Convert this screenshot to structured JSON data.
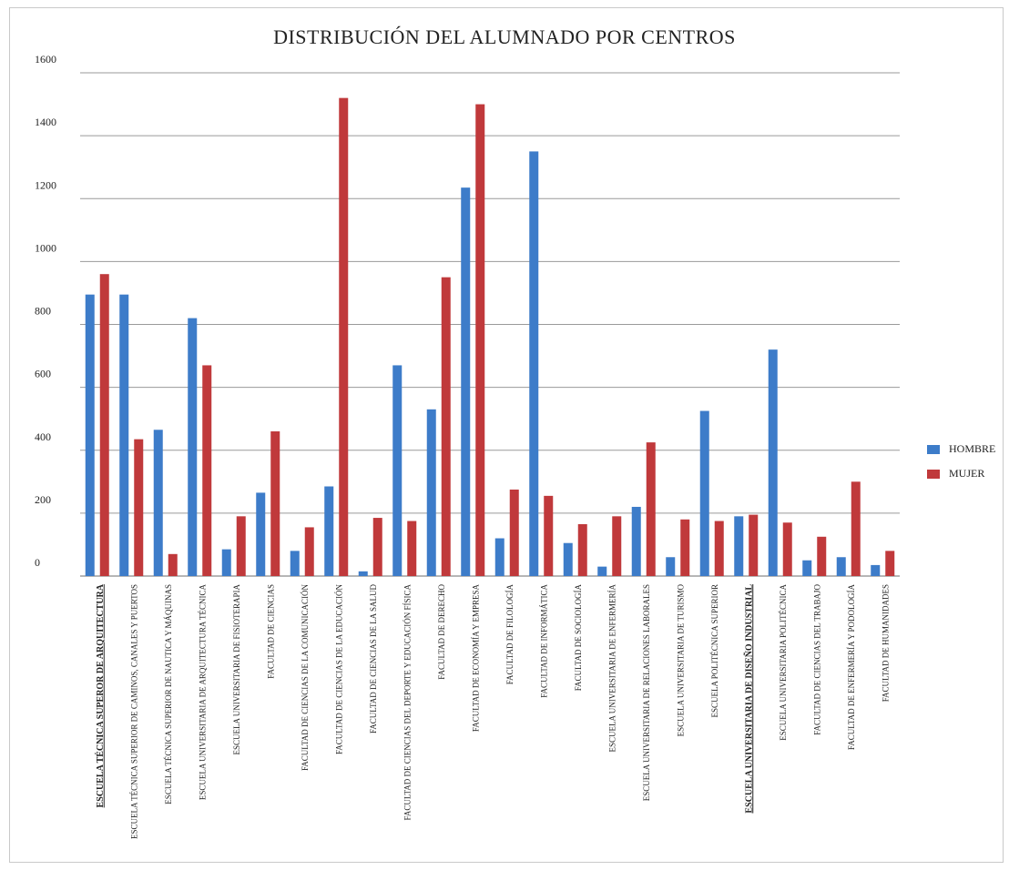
{
  "chart_data": {
    "type": "bar",
    "title": "DISTRIBUCIÓN DEL ALUMNADO POR CENTROS",
    "xlabel": "",
    "ylabel": "",
    "ylim": [
      0,
      1600
    ],
    "yticks": [
      {
        "value": 0,
        "label": "0"
      },
      {
        "value": 200,
        "label": "200"
      },
      {
        "value": 400,
        "label": "400"
      },
      {
        "value": 600,
        "label": "600"
      },
      {
        "value": 800,
        "label": "800"
      },
      {
        "value": 1000,
        "label": "1000"
      },
      {
        "value": 1200,
        "label": "1200"
      },
      {
        "value": 1400,
        "label": "1400"
      },
      {
        "value": 1600,
        "label": "1600"
      }
    ],
    "grid": true,
    "legend_position": "right",
    "categories": [
      "ESCUELA TÉCNICA SUPEROR DE ARQUITECTURA",
      "ESCUELA TÉCNICA SUPERIOR DE CAMINOS, CANALES Y PUERTOS",
      "ESCUELA TÉCNICA SUPERIOR DE NAUTICA Y MÁQUINAS",
      "ESCUELA UNIVERSITARIA DE ARQUITECTURA TÉCNICA",
      "ESCUELA UNIVERSITARIA DE FISIOTERAPIA",
      "FACULTAD DE CIENCIAS",
      "FACULTAD DE CIENCIAS DE LA COMUNICACIÓN",
      "FACULTAD DE CIENCIAS DE LA EDUCACIÓN",
      "FACULTAD DE CIENCIAS DE LA SALUD",
      "FACULTAD DE CIENCIAS DEL DEPORTE Y EDUCACIÓN FÍSICA",
      "FACULTAD DE DERECHO",
      "FACULTAD DE ECONOMÍA Y EMPRESA",
      "FACULTAD DE FILOLOGÍA",
      "FACULTAD DE INFORMÁTICA",
      "FACULTAD DE SOCIOLOGÍA",
      "ESCUELA UNIVERSITARIA DE ENFERMERÍA",
      "ESCUELA UNIVERSITARIA DE RELACIONES LABORALES",
      "ESCUELA UNIVERSITARIA DE TURISMO",
      "ESCUELA POLITÉCNICA SUPERIOR",
      "ESCUELA UNIVERSITARIA DE DISEÑO INDUSTRIAL",
      "ESCUELA UNIVERSITARIA POLITÉCNICA",
      "FACULTAD DE CIENCIAS DEL TRABAJO",
      "FACULTAD DE ENFERMERÍA Y PODOLOGÍA",
      "FACULTAD DE HUMANIDADES"
    ],
    "emphasized_categories": [
      0,
      19
    ],
    "series": [
      {
        "name": "HOMBRE",
        "color": "#3d7cc9",
        "values": [
          895,
          895,
          465,
          820,
          85,
          265,
          80,
          285,
          15,
          670,
          530,
          1235,
          120,
          1350,
          105,
          30,
          220,
          60,
          525,
          190,
          720,
          50,
          60,
          35
        ]
      },
      {
        "name": "MUJER",
        "color": "#c0393b",
        "values": [
          960,
          435,
          70,
          670,
          190,
          460,
          155,
          1520,
          185,
          175,
          950,
          1500,
          275,
          255,
          165,
          190,
          425,
          180,
          175,
          195,
          170,
          125,
          300,
          80
        ]
      }
    ]
  }
}
